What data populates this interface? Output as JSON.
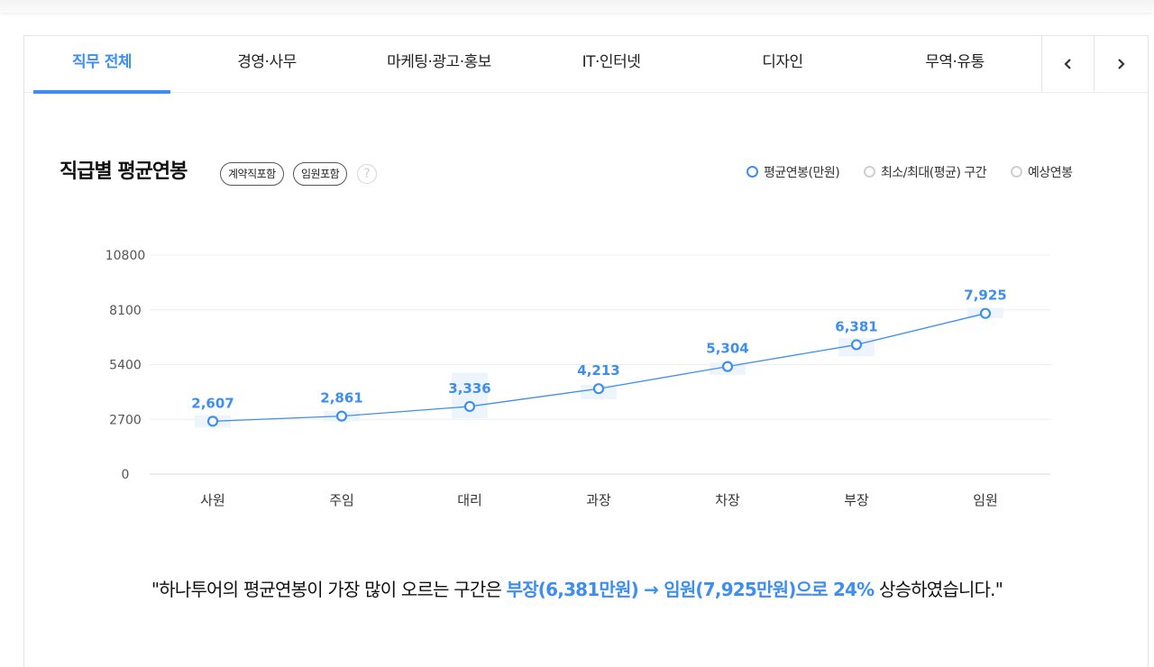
{
  "tabs": [
    {
      "label": "직무 전체",
      "active": true
    },
    {
      "label": "경영·사무",
      "active": false
    },
    {
      "label": "마케팅·광고·홍보",
      "active": false
    },
    {
      "label": "IT·인터넷",
      "active": false
    },
    {
      "label": "디자인",
      "active": false
    },
    {
      "label": "무역·유통",
      "active": false
    }
  ],
  "nav": {
    "prev_icon": "chevron-left-icon",
    "next_icon": "chevron-right-icon"
  },
  "title": "직급별 평균연봉",
  "filters": [
    "계약직포함",
    "임원포함"
  ],
  "help_label": "?",
  "legend": [
    {
      "label": "평균연봉(만원)",
      "color": "#3d8ef0"
    },
    {
      "label": "최소/최대(평균) 구간",
      "color": "#cfcfcf"
    },
    {
      "label": "예상연봉",
      "color": "#cfcfcf"
    }
  ],
  "chart_data": {
    "type": "line",
    "categories": [
      "사원",
      "주임",
      "대리",
      "과장",
      "차장",
      "부장",
      "임원"
    ],
    "series": [
      {
        "name": "평균연봉(만원)",
        "values": [
          2607,
          2861,
          3336,
          4213,
          5304,
          6381,
          7925
        ]
      }
    ],
    "data_labels": [
      "2,607",
      "2,861",
      "3,336",
      "4,213",
      "5,304",
      "6,381",
      "7,925"
    ],
    "y_ticks": [
      0,
      2700,
      5400,
      8100,
      10800
    ],
    "ylim": [
      0,
      10800
    ],
    "range_bands": [
      [
        2300,
        2900
      ],
      [
        2600,
        3100
      ],
      [
        2750,
        5000
      ],
      [
        3700,
        4400
      ],
      [
        4900,
        5500
      ],
      [
        5800,
        6700
      ],
      [
        7700,
        8200
      ]
    ],
    "grid": true,
    "line_color": "#3d8ef0"
  },
  "summary": {
    "pre": "\"하나투어의 평균연봉이 가장 많이 오르는 구간은 ",
    "highlight": "부장(6,381만원) → 임원(7,925만원)으로 24%",
    "post": " 상승하였습니다.\""
  }
}
